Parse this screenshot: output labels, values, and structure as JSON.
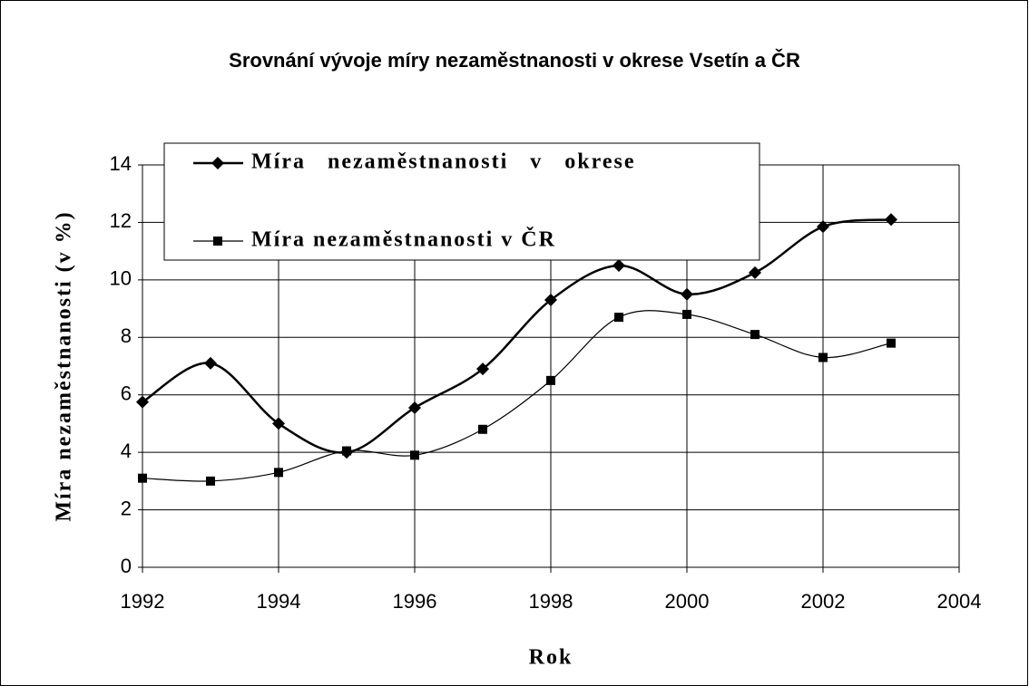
{
  "chart_data": {
    "type": "line",
    "title": "Srovnání vývoje  míry nezaměstnanosti v okrese Vsetín a ČR",
    "x_label": "Rok",
    "y_label": "Míra nezaměstnanosti (v %)",
    "x": [
      1992,
      1993,
      1994,
      1995,
      1996,
      1997,
      1998,
      1999,
      2000,
      2001,
      2002,
      2003
    ],
    "series": [
      {
        "name": "Míra   nezaměstnanosti   v   okrese",
        "color": "#000000",
        "marker": "diamond",
        "smooth": true,
        "values": [
          5.75,
          7.1,
          5.0,
          4.0,
          5.55,
          6.9,
          9.3,
          10.5,
          9.5,
          10.25,
          11.85,
          12.1
        ]
      },
      {
        "name": "Míra nezaměstnanosti v ČR",
        "color": "#000000",
        "marker": "square",
        "smooth": true,
        "values": [
          3.1,
          3.0,
          3.3,
          4.05,
          3.9,
          4.8,
          6.5,
          8.7,
          8.8,
          8.1,
          7.3,
          7.8
        ]
      }
    ],
    "xlim": [
      1992,
      2004
    ],
    "xticks": [
      1992,
      1994,
      1996,
      1998,
      2000,
      2002,
      2004
    ],
    "ylim": [
      0,
      14
    ],
    "yticks": [
      0,
      2,
      4,
      6,
      8,
      10,
      12,
      14
    ],
    "grid": true,
    "legend": "top-left"
  }
}
